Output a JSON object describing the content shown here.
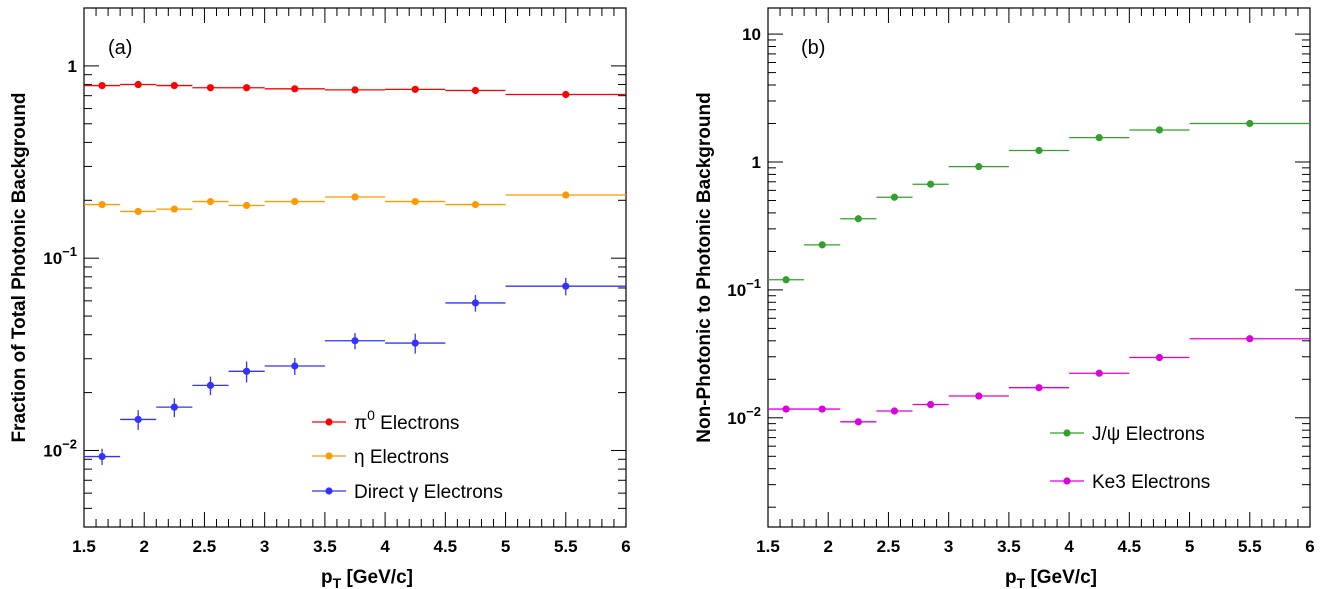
{
  "chart_data": [
    {
      "type": "scatter",
      "panel_label": "(a)",
      "xlabel": "p_T [GeV/c]",
      "ylabel": "Fraction of Total Photonic Background",
      "xlim": [
        1.5,
        6
      ],
      "ylim": [
        0.004,
        2
      ],
      "yscale": "log",
      "x_tick_labels": [
        "1.5",
        "2",
        "2.5",
        "3",
        "3.5",
        "4",
        "4.5",
        "5",
        "5.5",
        "6"
      ],
      "y_tick_labels": [
        {
          "value": 1,
          "base": "1",
          "exp": ""
        },
        {
          "value": 0.1,
          "base": "10",
          "exp": "−1"
        },
        {
          "value": 0.01,
          "base": "10",
          "exp": "−2"
        }
      ],
      "grid": false,
      "legend_position": "bottom-right",
      "series": [
        {
          "name": "π⁰ Electrons",
          "name_base": "π",
          "name_sup": "0",
          "name_rest": " Electrons",
          "color": "#ff0000",
          "bins": [
            [
              1.5,
              1.8
            ],
            [
              1.8,
              2.1
            ],
            [
              2.1,
              2.4
            ],
            [
              2.4,
              2.7
            ],
            [
              2.7,
              3.0
            ],
            [
              3.0,
              3.5
            ],
            [
              3.5,
              4.0
            ],
            [
              4.0,
              4.5
            ],
            [
              4.5,
              5.0
            ],
            [
              5.0,
              6.0
            ]
          ],
          "x": [
            1.65,
            1.95,
            2.25,
            2.55,
            2.85,
            3.25,
            3.75,
            4.25,
            4.75,
            5.5
          ],
          "y": [
            0.79,
            0.8,
            0.79,
            0.77,
            0.77,
            0.76,
            0.75,
            0.755,
            0.745,
            0.71
          ]
        },
        {
          "name": "η Electrons",
          "color": "#ff9900",
          "bins": [
            [
              1.5,
              1.8
            ],
            [
              1.8,
              2.1
            ],
            [
              2.1,
              2.4
            ],
            [
              2.4,
              2.7
            ],
            [
              2.7,
              3.0
            ],
            [
              3.0,
              3.5
            ],
            [
              3.5,
              4.0
            ],
            [
              4.0,
              4.5
            ],
            [
              4.5,
              5.0
            ],
            [
              5.0,
              6.0
            ]
          ],
          "x": [
            1.65,
            1.95,
            2.25,
            2.55,
            2.85,
            3.25,
            3.75,
            4.25,
            4.75,
            5.5
          ],
          "y": [
            0.19,
            0.175,
            0.18,
            0.197,
            0.188,
            0.197,
            0.208,
            0.197,
            0.19,
            0.213
          ]
        },
        {
          "name": "Direct γ Electrons",
          "color": "#3333ff",
          "bins": [
            [
              1.5,
              1.8
            ],
            [
              1.8,
              2.1
            ],
            [
              2.1,
              2.4
            ],
            [
              2.4,
              2.7
            ],
            [
              2.7,
              3.0
            ],
            [
              3.0,
              3.5
            ],
            [
              3.5,
              4.0
            ],
            [
              4.0,
              4.5
            ],
            [
              4.5,
              5.0
            ],
            [
              5.0,
              6.0
            ]
          ],
          "x": [
            1.65,
            1.95,
            2.25,
            2.55,
            2.85,
            3.25,
            3.75,
            4.25,
            4.75,
            5.5
          ],
          "y": [
            0.0093,
            0.0145,
            0.0168,
            0.0218,
            0.0258,
            0.0275,
            0.0372,
            0.0362,
            0.0585,
            0.0715
          ],
          "yerr": [
            0.0009,
            0.0017,
            0.0019,
            0.0024,
            0.0032,
            0.0028,
            0.0036,
            0.0043,
            0.0058,
            0.0075
          ]
        }
      ]
    },
    {
      "type": "scatter",
      "panel_label": "(b)",
      "xlabel": "p_T [GeV/c]",
      "ylabel": "Non-Photonic to Photonic Background",
      "xlim": [
        1.5,
        6
      ],
      "ylim": [
        0.0014,
        16
      ],
      "yscale": "log",
      "x_tick_labels": [
        "1.5",
        "2",
        "2.5",
        "3",
        "3.5",
        "4",
        "4.5",
        "5",
        "5.5",
        "6"
      ],
      "y_tick_labels": [
        {
          "value": 10,
          "base": "10",
          "exp": ""
        },
        {
          "value": 1,
          "base": "1",
          "exp": ""
        },
        {
          "value": 0.1,
          "base": "10",
          "exp": "−1"
        },
        {
          "value": 0.01,
          "base": "10",
          "exp": "−2"
        }
      ],
      "grid": false,
      "legend_position": "bottom-right",
      "series": [
        {
          "name": "J/ψ Electrons",
          "color": "#33a02c",
          "bins": [
            [
              1.5,
              1.8
            ],
            [
              1.8,
              2.1
            ],
            [
              2.1,
              2.4
            ],
            [
              2.4,
              2.7
            ],
            [
              2.7,
              3.0
            ],
            [
              3.0,
              3.5
            ],
            [
              3.5,
              4.0
            ],
            [
              4.0,
              4.5
            ],
            [
              4.5,
              5.0
            ],
            [
              5.0,
              6.0
            ]
          ],
          "x": [
            1.65,
            1.95,
            2.25,
            2.55,
            2.85,
            3.25,
            3.75,
            4.25,
            4.75,
            5.5
          ],
          "y": [
            0.12,
            0.225,
            0.36,
            0.53,
            0.67,
            0.92,
            1.23,
            1.55,
            1.78,
            2.0
          ]
        },
        {
          "name": "Ke3 Electrons",
          "color": "#dd00dd",
          "bins": [
            [
              1.5,
              1.8
            ],
            [
              1.8,
              2.1
            ],
            [
              2.1,
              2.4
            ],
            [
              2.4,
              2.7
            ],
            [
              2.7,
              3.0
            ],
            [
              3.0,
              3.5
            ],
            [
              3.5,
              4.0
            ],
            [
              4.0,
              4.5
            ],
            [
              4.5,
              5.0
            ],
            [
              5.0,
              6.0
            ]
          ],
          "x": [
            1.65,
            1.95,
            2.25,
            2.55,
            2.85,
            3.25,
            3.75,
            4.25,
            4.75,
            5.5
          ],
          "y": [
            0.0117,
            0.0117,
            0.0093,
            0.0113,
            0.0127,
            0.0148,
            0.0172,
            0.0223,
            0.0296,
            0.0415
          ]
        }
      ]
    }
  ]
}
